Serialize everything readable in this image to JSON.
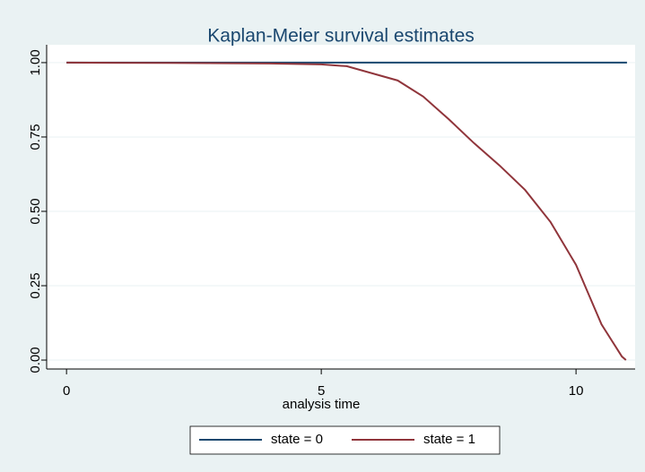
{
  "chart_data": {
    "type": "line",
    "title": "Kaplan-Meier survival estimates",
    "x_label": "analysis time",
    "xlim": [
      -0.39,
      11.16
    ],
    "xticks": [
      0,
      5,
      10
    ],
    "ylim": [
      -0.03,
      1.06
    ],
    "yticks": [
      {
        "value": 0,
        "label": "0.00"
      },
      {
        "value": 0.25,
        "label": "0.25"
      },
      {
        "value": 0.5,
        "label": "0.50"
      },
      {
        "value": 0.75,
        "label": "0.75"
      },
      {
        "value": 1,
        "label": "1.00"
      }
    ],
    "grid": true,
    "legend": "bottom",
    "series": [
      {
        "name": "state = 0",
        "color": "#1a476f",
        "x": [
          0,
          11.0
        ],
        "values": [
          1,
          1
        ]
      },
      {
        "name": "state = 1",
        "color": "#90353b",
        "x": [
          0,
          2,
          4,
          5,
          5.5,
          6,
          6.5,
          7,
          7.5,
          8,
          8.5,
          9,
          9.5,
          10,
          10.3,
          10.5,
          10.7,
          10.9,
          10.98
        ],
        "values": [
          1,
          0.999,
          0.997,
          0.994,
          0.988,
          0.964,
          0.94,
          0.886,
          0.81,
          0.729,
          0.654,
          0.572,
          0.464,
          0.32,
          0.2,
          0.12,
          0.066,
          0.012,
          0
        ]
      }
    ]
  }
}
